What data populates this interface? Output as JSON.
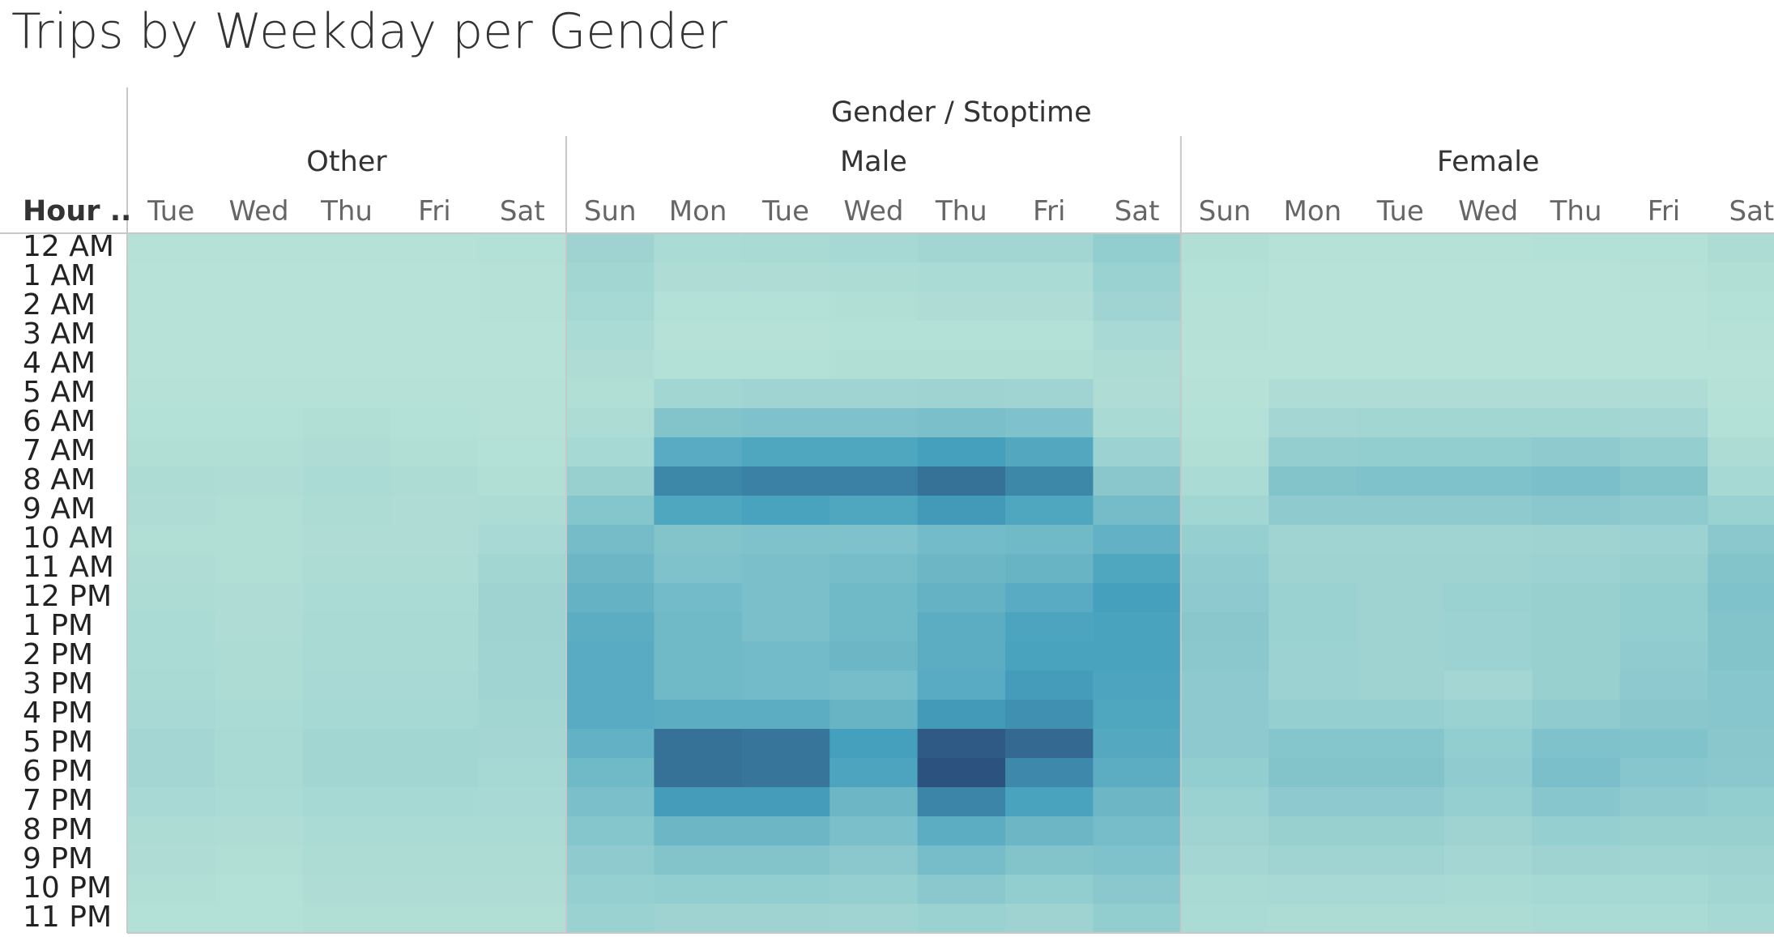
{
  "page": {
    "title": "Trips by Weekday per Gender"
  },
  "chart_data": {
    "type": "heatmap",
    "title": "Trips by Weekday per Gender",
    "column_header": "Gender / Stoptime",
    "row_header": "Hour ..",
    "rows": [
      "12 AM",
      "1 AM",
      "2 AM",
      "3 AM",
      "4 AM",
      "5 AM",
      "6 AM",
      "7 AM",
      "8 AM",
      "9 AM",
      "10 AM",
      "11 AM",
      "12 PM",
      "1 PM",
      "2 PM",
      "3 PM",
      "4 PM",
      "5 PM",
      "6 PM",
      "7 PM",
      "8 PM",
      "9 PM",
      "10 PM",
      "11 PM"
    ],
    "color_scale": {
      "low": "#b9e3d8",
      "mid": "#45a0bd",
      "high": "#2c5280"
    },
    "groups": [
      {
        "name": "Other",
        "days": [
          "Tue",
          "Wed",
          "Thu",
          "Fri",
          "Sat"
        ],
        "values": [
          [
            0.02,
            0.02,
            0.02,
            0.02,
            0.03
          ],
          [
            0.01,
            0.01,
            0.01,
            0.01,
            0.02
          ],
          [
            0.01,
            0.01,
            0.01,
            0.01,
            0.02
          ],
          [
            0.01,
            0.01,
            0.01,
            0.01,
            0.01
          ],
          [
            0.01,
            0.01,
            0.01,
            0.01,
            0.01
          ],
          [
            0.02,
            0.02,
            0.02,
            0.02,
            0.02
          ],
          [
            0.03,
            0.03,
            0.04,
            0.03,
            0.02
          ],
          [
            0.04,
            0.04,
            0.05,
            0.04,
            0.03
          ],
          [
            0.06,
            0.05,
            0.07,
            0.06,
            0.04
          ],
          [
            0.05,
            0.04,
            0.06,
            0.05,
            0.06
          ],
          [
            0.04,
            0.04,
            0.05,
            0.05,
            0.09
          ],
          [
            0.05,
            0.04,
            0.06,
            0.06,
            0.12
          ],
          [
            0.06,
            0.05,
            0.07,
            0.07,
            0.14
          ],
          [
            0.07,
            0.05,
            0.08,
            0.08,
            0.14
          ],
          [
            0.07,
            0.06,
            0.08,
            0.08,
            0.13
          ],
          [
            0.08,
            0.06,
            0.09,
            0.09,
            0.13
          ],
          [
            0.09,
            0.07,
            0.1,
            0.1,
            0.12
          ],
          [
            0.11,
            0.08,
            0.12,
            0.12,
            0.11
          ],
          [
            0.11,
            0.08,
            0.12,
            0.12,
            0.1
          ],
          [
            0.09,
            0.07,
            0.1,
            0.1,
            0.09
          ],
          [
            0.06,
            0.05,
            0.07,
            0.07,
            0.07
          ],
          [
            0.05,
            0.04,
            0.06,
            0.06,
            0.06
          ],
          [
            0.04,
            0.03,
            0.05,
            0.05,
            0.05
          ],
          [
            0.03,
            0.03,
            0.04,
            0.04,
            0.04
          ]
        ]
      },
      {
        "name": "Male",
        "days": [
          "Sun",
          "Mon",
          "Tue",
          "Wed",
          "Thu",
          "Fri",
          "Sat"
        ],
        "values": [
          [
            0.14,
            0.07,
            0.08,
            0.1,
            0.12,
            0.12,
            0.2
          ],
          [
            0.12,
            0.05,
            0.05,
            0.06,
            0.07,
            0.07,
            0.16
          ],
          [
            0.1,
            0.03,
            0.03,
            0.04,
            0.05,
            0.05,
            0.13
          ],
          [
            0.07,
            0.02,
            0.02,
            0.03,
            0.03,
            0.03,
            0.09
          ],
          [
            0.05,
            0.03,
            0.03,
            0.04,
            0.04,
            0.04,
            0.06
          ],
          [
            0.04,
            0.12,
            0.13,
            0.13,
            0.14,
            0.13,
            0.05
          ],
          [
            0.06,
            0.28,
            0.3,
            0.3,
            0.32,
            0.3,
            0.08
          ],
          [
            0.1,
            0.5,
            0.55,
            0.55,
            0.6,
            0.53,
            0.15
          ],
          [
            0.17,
            0.73,
            0.76,
            0.76,
            0.84,
            0.73,
            0.25
          ],
          [
            0.27,
            0.55,
            0.58,
            0.55,
            0.63,
            0.55,
            0.35
          ],
          [
            0.35,
            0.28,
            0.3,
            0.3,
            0.36,
            0.38,
            0.45
          ],
          [
            0.4,
            0.3,
            0.32,
            0.34,
            0.4,
            0.42,
            0.55
          ],
          [
            0.44,
            0.36,
            0.32,
            0.38,
            0.44,
            0.5,
            0.6
          ],
          [
            0.48,
            0.38,
            0.32,
            0.38,
            0.48,
            0.56,
            0.58
          ],
          [
            0.5,
            0.38,
            0.36,
            0.4,
            0.48,
            0.58,
            0.58
          ],
          [
            0.5,
            0.38,
            0.36,
            0.34,
            0.5,
            0.62,
            0.56
          ],
          [
            0.5,
            0.48,
            0.48,
            0.42,
            0.63,
            0.68,
            0.55
          ],
          [
            0.45,
            0.84,
            0.82,
            0.6,
            0.96,
            0.88,
            0.52
          ],
          [
            0.38,
            0.84,
            0.82,
            0.56,
            1.0,
            0.72,
            0.48
          ],
          [
            0.32,
            0.62,
            0.62,
            0.4,
            0.74,
            0.58,
            0.4
          ],
          [
            0.27,
            0.4,
            0.4,
            0.32,
            0.48,
            0.4,
            0.34
          ],
          [
            0.22,
            0.28,
            0.28,
            0.24,
            0.34,
            0.28,
            0.3
          ],
          [
            0.18,
            0.2,
            0.2,
            0.18,
            0.24,
            0.2,
            0.24
          ],
          [
            0.16,
            0.14,
            0.14,
            0.13,
            0.16,
            0.14,
            0.2
          ]
        ]
      },
      {
        "name": "Female",
        "days": [
          "Sun",
          "Mon",
          "Tue",
          "Wed",
          "Thu",
          "Fri",
          "Sat"
        ],
        "values": [
          [
            0.04,
            0.02,
            0.02,
            0.02,
            0.03,
            0.03,
            0.06
          ],
          [
            0.03,
            0.01,
            0.01,
            0.01,
            0.01,
            0.02,
            0.04
          ],
          [
            0.02,
            0.01,
            0.01,
            0.01,
            0.01,
            0.01,
            0.03
          ],
          [
            0.02,
            0.01,
            0.01,
            0.01,
            0.01,
            0.01,
            0.02
          ],
          [
            0.01,
            0.01,
            0.01,
            0.01,
            0.01,
            0.01,
            0.01
          ],
          [
            0.02,
            0.05,
            0.05,
            0.05,
            0.05,
            0.05,
            0.02
          ],
          [
            0.03,
            0.11,
            0.12,
            0.12,
            0.12,
            0.11,
            0.03
          ],
          [
            0.04,
            0.19,
            0.2,
            0.2,
            0.22,
            0.19,
            0.06
          ],
          [
            0.07,
            0.28,
            0.3,
            0.3,
            0.32,
            0.28,
            0.1
          ],
          [
            0.12,
            0.22,
            0.22,
            0.22,
            0.24,
            0.22,
            0.16
          ],
          [
            0.18,
            0.13,
            0.13,
            0.13,
            0.14,
            0.15,
            0.24
          ],
          [
            0.21,
            0.14,
            0.14,
            0.14,
            0.15,
            0.17,
            0.28
          ],
          [
            0.23,
            0.16,
            0.14,
            0.16,
            0.17,
            0.2,
            0.3
          ],
          [
            0.25,
            0.16,
            0.14,
            0.15,
            0.17,
            0.2,
            0.28
          ],
          [
            0.24,
            0.15,
            0.14,
            0.15,
            0.17,
            0.21,
            0.28
          ],
          [
            0.23,
            0.15,
            0.14,
            0.11,
            0.17,
            0.23,
            0.26
          ],
          [
            0.23,
            0.18,
            0.18,
            0.16,
            0.21,
            0.25,
            0.26
          ],
          [
            0.23,
            0.27,
            0.27,
            0.2,
            0.3,
            0.29,
            0.25
          ],
          [
            0.2,
            0.28,
            0.28,
            0.21,
            0.32,
            0.26,
            0.24
          ],
          [
            0.16,
            0.23,
            0.23,
            0.18,
            0.26,
            0.22,
            0.2
          ],
          [
            0.13,
            0.17,
            0.17,
            0.14,
            0.18,
            0.17,
            0.17
          ],
          [
            0.11,
            0.13,
            0.13,
            0.11,
            0.14,
            0.13,
            0.14
          ],
          [
            0.08,
            0.09,
            0.09,
            0.08,
            0.1,
            0.1,
            0.12
          ],
          [
            0.07,
            0.06,
            0.06,
            0.06,
            0.07,
            0.07,
            0.1
          ]
        ]
      }
    ]
  }
}
